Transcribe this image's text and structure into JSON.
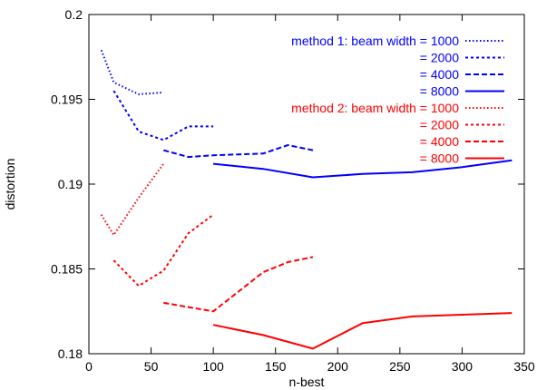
{
  "chart_data": {
    "type": "line",
    "xlabel": "n-best",
    "ylabel": "distortion",
    "xlim": [
      0,
      350
    ],
    "ylim": [
      0.18,
      0.2
    ],
    "xticks": [
      0,
      50,
      100,
      150,
      200,
      250,
      300,
      350
    ],
    "yticks": [
      0.18,
      0.185,
      0.19,
      0.195,
      0.2
    ],
    "ytick_labels": [
      "0.18",
      "0.185",
      "0.19",
      "0.195",
      "0.2"
    ],
    "legend_position": "top-right",
    "legend": [
      {
        "prefix": "method 1:  beam width = ",
        "value": "1000",
        "color": "#0000ff",
        "dash": "dotted"
      },
      {
        "prefix": "= ",
        "value": "2000",
        "color": "#0000ff",
        "dash": "short"
      },
      {
        "prefix": "= ",
        "value": "4000",
        "color": "#0000ff",
        "dash": "medium"
      },
      {
        "prefix": "= ",
        "value": "8000",
        "color": "#0000ff",
        "dash": "solid"
      },
      {
        "prefix": "method 2:  beam width = ",
        "value": "1000",
        "color": "#ff0000",
        "dash": "dotted"
      },
      {
        "prefix": "= ",
        "value": "2000",
        "color": "#ff0000",
        "dash": "short"
      },
      {
        "prefix": "= ",
        "value": "4000",
        "color": "#ff0000",
        "dash": "medium"
      },
      {
        "prefix": "= ",
        "value": "8000",
        "color": "#ff0000",
        "dash": "solid"
      }
    ],
    "series": [
      {
        "method": 1,
        "beam_width": 1000,
        "color": "#0000ff",
        "dash": "dotted",
        "x": [
          10,
          20,
          40,
          60
        ],
        "y": [
          0.1979,
          0.196,
          0.1953,
          0.1954
        ]
      },
      {
        "method": 1,
        "beam_width": 2000,
        "color": "#0000ff",
        "dash": "short",
        "x": [
          20,
          40,
          60,
          80,
          100
        ],
        "y": [
          0.1955,
          0.1931,
          0.1926,
          0.1934,
          0.1934
        ]
      },
      {
        "method": 1,
        "beam_width": 4000,
        "color": "#0000ff",
        "dash": "medium",
        "x": [
          60,
          80,
          100,
          140,
          160,
          180
        ],
        "y": [
          0.192,
          0.1916,
          0.1917,
          0.1918,
          0.1923,
          0.192
        ]
      },
      {
        "method": 1,
        "beam_width": 8000,
        "color": "#0000ff",
        "dash": "solid",
        "x": [
          100,
          140,
          180,
          220,
          260,
          300,
          340
        ],
        "y": [
          0.1912,
          0.1909,
          0.1904,
          0.1906,
          0.1907,
          0.191,
          0.1914
        ]
      },
      {
        "method": 2,
        "beam_width": 1000,
        "color": "#ff0000",
        "dash": "dotted",
        "x": [
          10,
          20,
          40,
          60
        ],
        "y": [
          0.1882,
          0.187,
          0.1892,
          0.1912
        ]
      },
      {
        "method": 2,
        "beam_width": 2000,
        "color": "#ff0000",
        "dash": "short",
        "x": [
          20,
          40,
          60,
          80,
          100
        ],
        "y": [
          0.1855,
          0.184,
          0.1849,
          0.1871,
          0.1882
        ]
      },
      {
        "method": 2,
        "beam_width": 4000,
        "color": "#ff0000",
        "dash": "medium",
        "x": [
          60,
          100,
          140,
          160,
          180
        ],
        "y": [
          0.183,
          0.1825,
          0.1848,
          0.1854,
          0.1857
        ]
      },
      {
        "method": 2,
        "beam_width": 8000,
        "color": "#ff0000",
        "dash": "solid",
        "x": [
          100,
          140,
          180,
          220,
          260,
          300,
          340
        ],
        "y": [
          0.1817,
          0.1811,
          0.1803,
          0.1818,
          0.1822,
          0.1823,
          0.1824
        ]
      }
    ]
  }
}
